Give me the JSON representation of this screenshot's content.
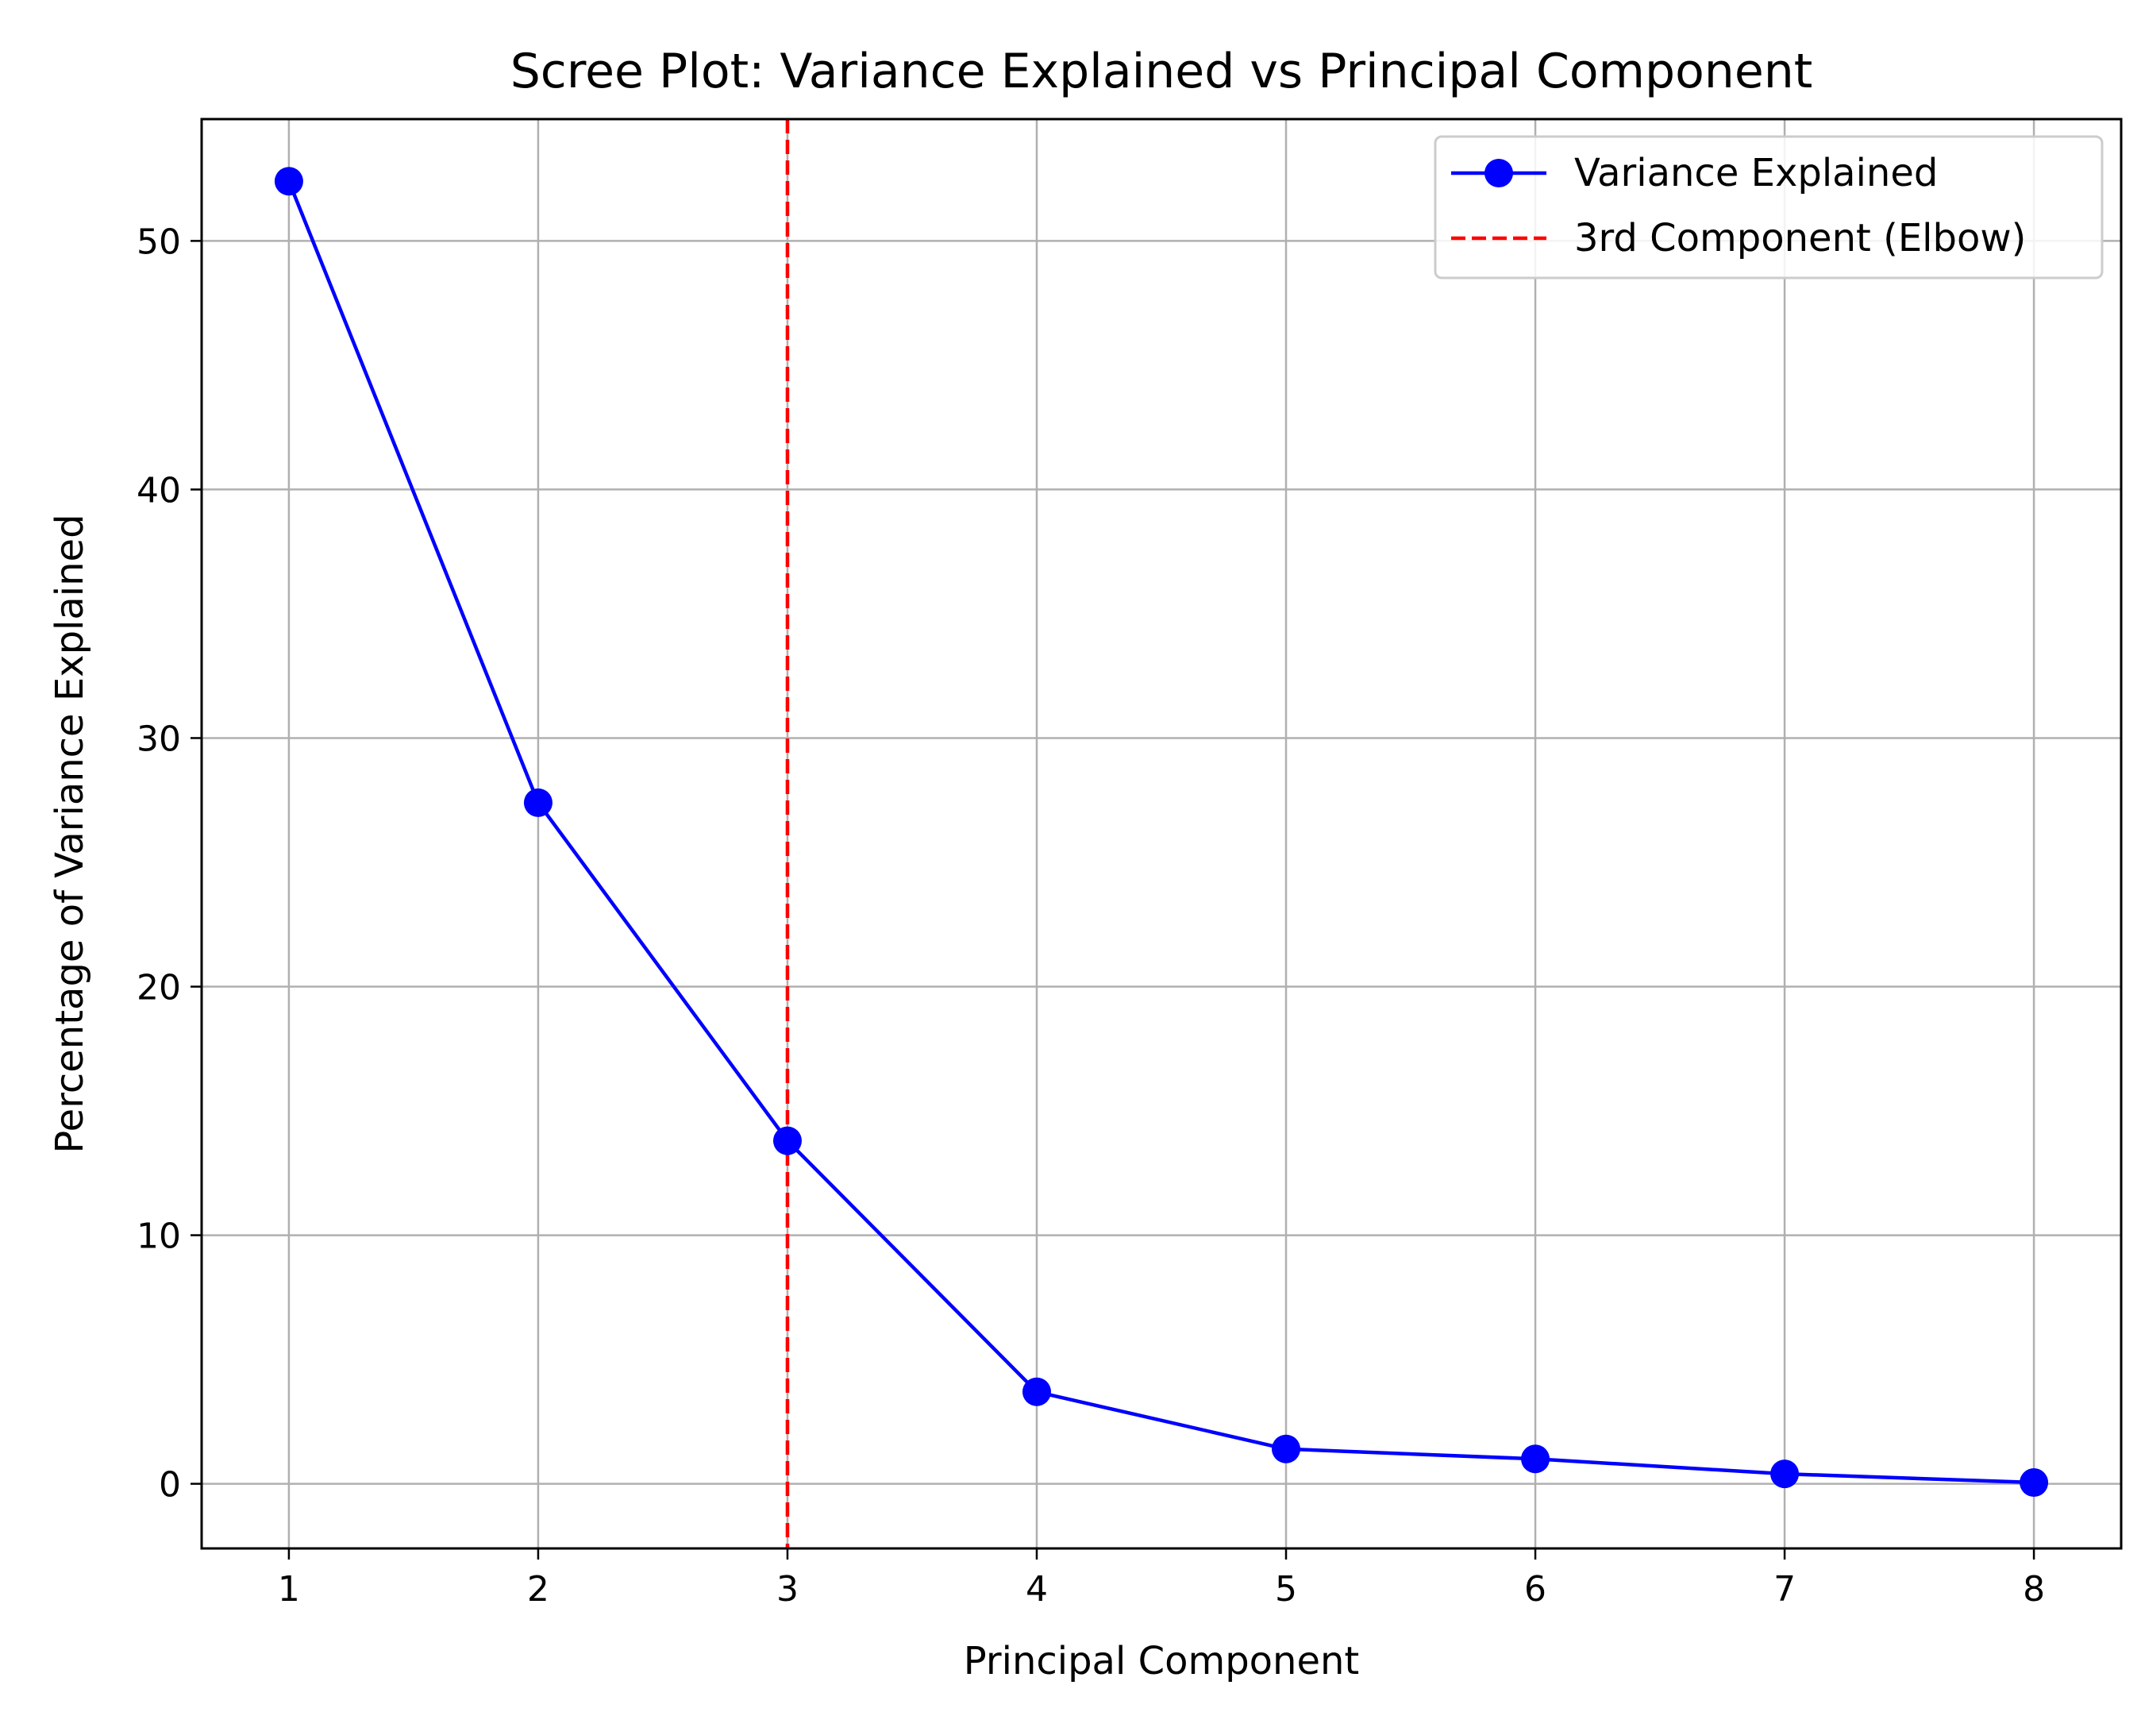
{
  "chart_data": {
    "type": "line",
    "title": "Scree Plot: Variance Explained vs Principal Component",
    "xlabel": "Principal Component",
    "ylabel": "Percentage of Variance Explained",
    "x": [
      1,
      2,
      3,
      4,
      5,
      6,
      7,
      8
    ],
    "xticks": [
      "1",
      "2",
      "3",
      "4",
      "5",
      "6",
      "7",
      "8"
    ],
    "xlim": [
      0.65,
      8.35
    ],
    "yticks": [
      0,
      10,
      20,
      30,
      40,
      50
    ],
    "ytick_labels": [
      "0",
      "10",
      "20",
      "30",
      "40",
      "50"
    ],
    "ylim": [
      -2.6,
      54.9
    ],
    "grid": true,
    "legend_position": "top-right",
    "series": [
      {
        "name": "Variance Explained",
        "values": [
          52.4,
          27.4,
          13.8,
          3.7,
          1.4,
          1.0,
          0.4,
          0.05
        ],
        "color": "#0000ff",
        "marker": "circle",
        "line_style": "solid"
      }
    ],
    "reference_lines": [
      {
        "name": "3rd Component (Elbow)",
        "orientation": "vertical",
        "x": 3,
        "color": "#ff0000",
        "line_style": "dashed"
      }
    ],
    "colors": {
      "grid": "#b0b0b0",
      "axes": "#000000",
      "legend_border": "#cccccc"
    }
  }
}
